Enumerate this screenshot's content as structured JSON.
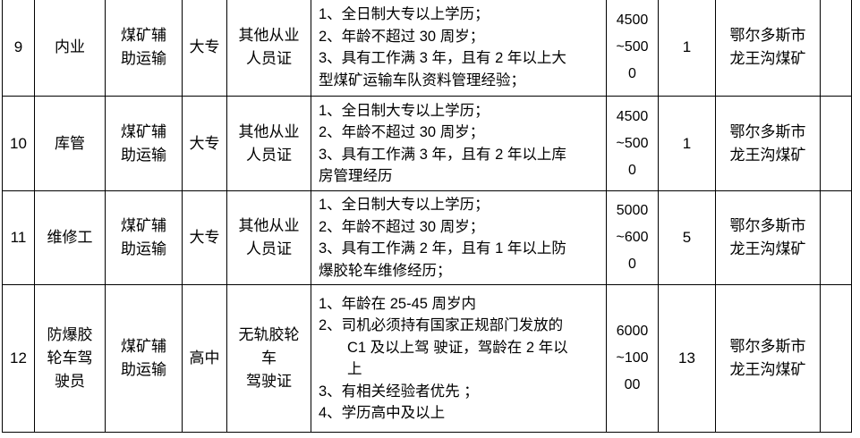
{
  "rows": [
    {
      "no": "9",
      "position": "内业",
      "category": [
        "煤矿辅",
        "助运输"
      ],
      "education": "大专",
      "certificate": [
        "其他从业",
        "人员证"
      ],
      "requirements": [
        "1、全日制大专以上学历；",
        "2、年龄不超过 30 周岁；",
        "3、具有工作满 3 年，且有 2 年以上大",
        "型煤矿运输车队资料管理经验；"
      ],
      "salary": [
        "4500",
        "~500",
        "0"
      ],
      "count": "1",
      "location": [
        "鄂尔多斯市",
        "龙王沟煤矿"
      ]
    },
    {
      "no": "10",
      "position": "库管",
      "category": [
        "煤矿辅",
        "助运输"
      ],
      "education": "大专",
      "certificate": [
        "其他从业",
        "人员证"
      ],
      "requirements": [
        "1、全日制大专以上学历；",
        "2、年龄不超过 30 周岁；",
        "3、具有工作满 3 年，且有 2 年以上库",
        "房管理经历"
      ],
      "salary": [
        "4500",
        "~500",
        "0"
      ],
      "count": "1",
      "location": [
        "鄂尔多斯市",
        "龙王沟煤矿"
      ]
    },
    {
      "no": "11",
      "position": "维修工",
      "category": [
        "煤矿辅",
        "助运输"
      ],
      "education": "大专",
      "certificate": [
        "其他从业",
        "人员证"
      ],
      "requirements": [
        "1、全日制大专以上学历；",
        "2、年龄不超过 30 周岁；",
        "3、具有工作满 2 年，且有 1 年以上防",
        "爆胶轮车维修经历；"
      ],
      "salary": [
        "5000",
        "~600",
        "0"
      ],
      "count": "5",
      "location": [
        "鄂尔多斯市",
        "龙王沟煤矿"
      ]
    },
    {
      "no": "12",
      "position": [
        "防爆胶",
        "轮车驾",
        "驶员"
      ],
      "category": [
        "煤矿辅",
        "助运输"
      ],
      "education": "高中",
      "certificate": [
        "无轨胶轮",
        "车",
        "驾驶证"
      ],
      "requirements": [
        "1、年龄在 25-45 周岁内",
        "2、司机必须持有国家正规部门发放的",
        "C1 及以上驾 驶证，驾龄在 2 年以",
        "上",
        "3、有相关经验者优先 ；",
        "4、学历高中及以上"
      ],
      "salary": [
        "6000",
        "~100",
        "00"
      ],
      "count": "13",
      "location": [
        "鄂尔多斯市",
        "龙王沟煤矿"
      ]
    }
  ]
}
